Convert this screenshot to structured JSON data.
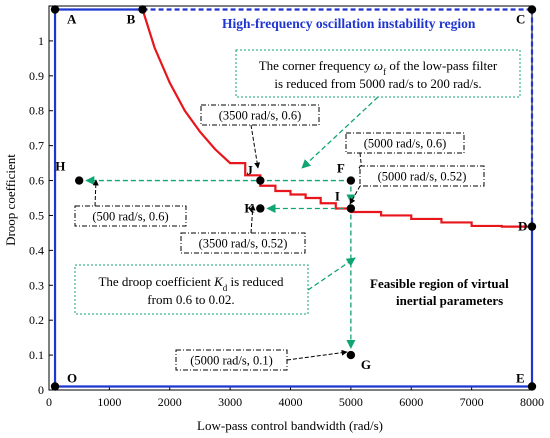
{
  "chart_data": {
    "type": "line",
    "title": "",
    "xlabel": "Low-pass control bandwidth (rad/s)",
    "ylabel": "Droop coefficient",
    "xlim": [
      0,
      8000
    ],
    "ylim": [
      0,
      1.1
    ],
    "xticks": [
      "0",
      "1000",
      "2000",
      "3000",
      "4000",
      "5000",
      "6000",
      "7000",
      "8000"
    ],
    "yticks": [
      "0",
      "0.1",
      "0.2",
      "0.3",
      "0.4",
      "0.5",
      "0.6",
      "0.7",
      "0.8",
      "0.9",
      "1"
    ],
    "grid": false,
    "boundary": {
      "x": [
        1550,
        1750,
        2000,
        2250,
        2500,
        2750,
        3000,
        3250,
        3500,
        3750,
        4000,
        4250,
        4500,
        4750,
        5000,
        5500,
        6000,
        6500,
        7000,
        7500,
        8000
      ],
      "y": [
        1.09,
        0.98,
        0.88,
        0.8,
        0.74,
        0.69,
        0.65,
        0.615,
        0.585,
        0.57,
        0.56,
        0.55,
        0.535,
        0.52,
        0.51,
        0.5,
        0.49,
        0.48,
        0.47,
        0.468,
        0.468
      ]
    },
    "colors": {
      "boundary": "#e8161b",
      "region": "#1f35d0",
      "arrow": "#11a573",
      "marker": "#000000"
    },
    "corners": [
      {
        "id": "A",
        "label": "A",
        "x": 100,
        "y": 1.09
      },
      {
        "id": "B",
        "label": "B",
        "x": 1550,
        "y": 1.09
      },
      {
        "id": "C",
        "label": "C",
        "x": 8000,
        "y": 1.09
      },
      {
        "id": "D",
        "label": "D",
        "x": 8000,
        "y": 0.468
      },
      {
        "id": "E",
        "label": "E",
        "x": 8000,
        "y": 0.01
      },
      {
        "id": "O",
        "label": "O",
        "x": 100,
        "y": 0.01
      }
    ],
    "points": [
      {
        "id": "F",
        "label": "F",
        "x": 5000,
        "y": 0.6
      },
      {
        "id": "I",
        "label": "I",
        "x": 5000,
        "y": 0.52
      },
      {
        "id": "G",
        "label": "G",
        "x": 5000,
        "y": 0.1
      },
      {
        "id": "J",
        "label": "J",
        "x": 3500,
        "y": 0.6
      },
      {
        "id": "K",
        "label": "K",
        "x": 3500,
        "y": 0.52
      },
      {
        "id": "H",
        "label": "H",
        "x": 500,
        "y": 0.6
      }
    ],
    "callouts": [
      {
        "id": "j",
        "text": "(3500 rad/s, 0.6)"
      },
      {
        "id": "f",
        "text": "(5000 rad/s, 0.6)"
      },
      {
        "id": "i",
        "text": "(5000 rad/s, 0.52)"
      },
      {
        "id": "h",
        "text": "(500 rad/s, 0.6)"
      },
      {
        "id": "k",
        "text": "(3500 rad/s, 0.52)"
      },
      {
        "id": "g",
        "text": "(5000 rad/s, 0.1)"
      }
    ],
    "regions": {
      "instability": "High-frequency oscillation instability region",
      "feasible_line1": "Feasible region of virtual",
      "feasible_line2": "inertial parameters"
    },
    "notes": {
      "corner_line1_before": "The corner frequency ",
      "corner_symbol": "ω",
      "corner_sub": "f",
      "corner_line1_after": " of the low-pass filter",
      "corner_line2": "is reduced from 5000 rad/s to 200 rad/s.",
      "droop_line1_before": "The droop coefficient ",
      "droop_symbol": "K",
      "droop_sub": "d",
      "droop_line1_after": " is reduced",
      "droop_line2": "from 0.6 to 0.02."
    }
  }
}
